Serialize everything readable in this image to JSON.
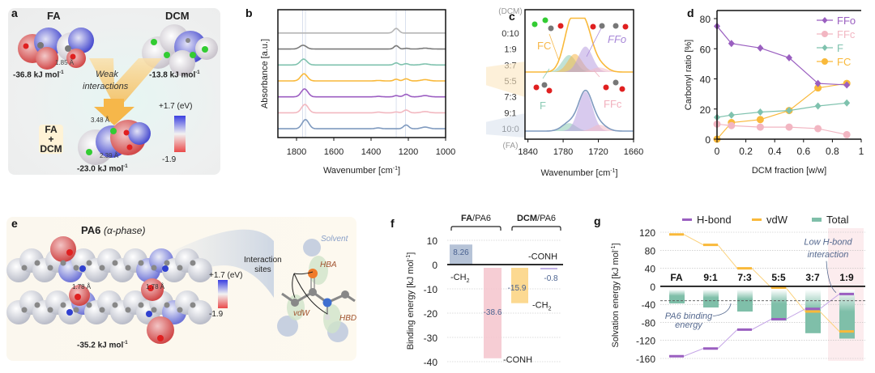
{
  "panels": {
    "a": {
      "label": "a",
      "fa_title": "FA",
      "dcm_title": "DCM",
      "fa_energy": "-36.8 kJ mol",
      "dcm_energy": "-13.8 kJ mol",
      "complex_energy": "-23.0 kJ mol",
      "energy_sup": "-1",
      "fa_hbond": "1.85 Å",
      "arrow_text_1": "Weak",
      "arrow_text_2": "interactions",
      "complex_label_1": "FA",
      "complex_label_2": "+",
      "complex_label_3": "DCM",
      "dist_1": "3.48 Å",
      "dist_2": "2.39 Å",
      "scale_max": "+1.7 (eV)",
      "scale_min": "-1.9"
    },
    "b": {
      "label": "b"
    },
    "c": {
      "label": "c"
    },
    "d": {
      "label": "d"
    },
    "e": {
      "label": "e",
      "title": "PA6",
      "subtitle": "(α-phase)",
      "dist_1": "1.78 Å",
      "dist_2": "1.78 Å",
      "energy": "-35.2 kJ mol",
      "energy_sup": "-1",
      "scale_max": "+1.7 (eV)",
      "scale_min": "-1.9",
      "solvent_label": "Solvent",
      "sites_label_1": "Interaction",
      "sites_label_2": "sites",
      "hba": "HBA",
      "hbd": "HBD",
      "vdw": "vdW"
    },
    "f": {
      "label": "f"
    },
    "g": {
      "label": "g"
    }
  },
  "chart_data": [
    {
      "id": "b",
      "type": "line",
      "title": "",
      "xlabel": "Wavenumber [cm-1]",
      "ylabel": "Absorbance [a.u.]",
      "xlim": [
        1900,
        1000
      ],
      "xticks": [
        1800,
        1600,
        1400,
        1200,
        1000
      ],
      "ratio_header": "(DCM)",
      "ratio_footer": "(FA)",
      "reference_lines": [
        1768,
        1752,
        1265,
        1215
      ],
      "series": [
        {
          "name": "0:10",
          "color": "#b5b5b5",
          "peaks": [
            [
              1265,
              0.55,
              14
            ]
          ]
        },
        {
          "name": "1:9",
          "color": "#7a7a7a",
          "peaks": [
            [
              1765,
              0.45,
              18
            ],
            [
              1265,
              0.4,
              12
            ],
            [
              1210,
              0.08,
              12
            ],
            [
              1110,
              0.1,
              20
            ]
          ]
        },
        {
          "name": "3:7",
          "color": "#7fc2ae",
          "peaks": [
            [
              1762,
              0.7,
              18
            ],
            [
              1265,
              0.25,
              12
            ],
            [
              1212,
              0.15,
              12
            ],
            [
              1110,
              0.12,
              20
            ]
          ]
        },
        {
          "name": "5:5",
          "color": "#f9b93a",
          "peaks": [
            [
              1760,
              0.85,
              18
            ],
            [
              1360,
              0.05,
              15
            ],
            [
              1265,
              0.2,
              12
            ],
            [
              1212,
              0.25,
              14
            ],
            [
              1110,
              0.15,
              20
            ]
          ]
        },
        {
          "name": "7:3",
          "color": "#9c5ec2",
          "peaks": [
            [
              1757,
              0.95,
              18
            ],
            [
              1360,
              0.06,
              15
            ],
            [
              1265,
              0.15,
              12
            ],
            [
              1212,
              0.3,
              14
            ],
            [
              1110,
              0.15,
              20
            ]
          ]
        },
        {
          "name": "9:1",
          "color": "#f2b8c0",
          "peaks": [
            [
              1755,
              1.0,
              18
            ],
            [
              1360,
              0.08,
              15
            ],
            [
              1265,
              0.1,
              12
            ],
            [
              1212,
              0.33,
              14
            ],
            [
              1110,
              0.15,
              20
            ]
          ]
        },
        {
          "name": "10:0",
          "color": "#7f9abf",
          "peaks": [
            [
              1752,
              1.1,
              18
            ],
            [
              1362,
              0.1,
              15
            ],
            [
              1212,
              0.45,
              14
            ],
            [
              1110,
              0.2,
              20
            ]
          ]
        }
      ]
    },
    {
      "id": "c",
      "type": "area",
      "xlabel": "Wavenumber [cm-1]",
      "xlim": [
        1845,
        1660
      ],
      "xticks": [
        1840,
        1780,
        1720,
        1660
      ],
      "component_labels": {
        "FC": "FC",
        "FFo": "FFo",
        "F": "F",
        "FFc": "FFc"
      },
      "component_colors": {
        "FC": "#f7b84a",
        "FFo": "#b89ee0",
        "F": "#8ccbb5",
        "FFc": "#f3bcc6"
      },
      "spectra": [
        {
          "ratio": "5:5",
          "color": "#f9b93a",
          "components": {
            "F": [
              1770,
              0.3
            ],
            "FC": [
              1760,
              0.32
            ],
            "FFo": [
              1742,
              0.45
            ],
            "FFc": [
              1718,
              0.08
            ]
          }
        },
        {
          "ratio": "10:0",
          "color": "#7f9abf",
          "components": {
            "F": [
              1770,
              0.15
            ],
            "FFo": [
              1742,
              0.75
            ],
            "FFc": [
              1718,
              0.12
            ]
          }
        }
      ]
    },
    {
      "id": "d",
      "type": "line",
      "xlabel": "DCM fraction [w/w]",
      "ylabel": "Carbonyl ratio [%]",
      "xlim": [
        0,
        1
      ],
      "ylim": [
        0,
        80
      ],
      "xticks": [
        0,
        0.2,
        0.4,
        0.6,
        0.8,
        1
      ],
      "yticks": [
        0,
        20,
        40,
        60,
        80
      ],
      "legend_position": "top-right",
      "x": [
        0,
        0.1,
        0.3,
        0.5,
        0.7,
        0.9
      ],
      "series": [
        {
          "name": "FFo",
          "color": "#9a5fc0",
          "marker": "diamond",
          "values": [
            75,
            63.5,
            60.5,
            54,
            37,
            36
          ]
        },
        {
          "name": "FFc",
          "color": "#f2b6c2",
          "marker": "circle",
          "values": [
            10,
            9,
            8,
            8,
            7,
            3
          ]
        },
        {
          "name": "F",
          "color": "#7fc2ae",
          "marker": "diamond",
          "values": [
            14.5,
            16,
            18,
            19,
            22,
            24
          ]
        },
        {
          "name": "FC",
          "color": "#f9b93a",
          "marker": "circle",
          "values": [
            0,
            11,
            13,
            19,
            34,
            37
          ]
        }
      ]
    },
    {
      "id": "f",
      "type": "bar",
      "ylabel": "Binding energy [kJ mol-1]",
      "ylim": [
        -40,
        10
      ],
      "yticks": [
        10,
        0,
        -10,
        -20,
        -30,
        -40
      ],
      "group_labels": [
        {
          "bold": "FA",
          "rest": "/PA6"
        },
        {
          "bold": "DCM",
          "rest": "/PA6"
        }
      ],
      "bars": [
        {
          "group": "FA/PA6",
          "site": "-CH2",
          "value": 8.26,
          "label": "8.26",
          "color": "#a9b8d0"
        },
        {
          "group": "FA/PA6",
          "site": "-CONH",
          "value": -38.6,
          "label": "-38.6",
          "color": "#f4c4cd"
        },
        {
          "group": "DCM/PA6",
          "site": "-CH2",
          "value": -15.9,
          "label": "-15.9",
          "color": "#fbd27e"
        },
        {
          "group": "DCM/PA6",
          "site": "-CONH",
          "value": -0.8,
          "label": "-0.8",
          "color": "#b7a3e0"
        }
      ],
      "site_labels": {
        "fa_ch2": "-CH",
        "fa_conh": "-CONH",
        "dcm_ch2": "-CH",
        "dcm_conh": "-CONH",
        "sub2": "2"
      }
    },
    {
      "id": "g",
      "type": "bar",
      "ylabel": "Solvation energy [kJ mol-1]",
      "ylim": [
        -160,
        120
      ],
      "yticks": [
        120,
        80,
        40,
        0,
        -40,
        -80,
        -120,
        -160
      ],
      "categories": [
        "FA",
        "9:1",
        "7:3",
        "5:5",
        "3:7",
        "1:9"
      ],
      "legend_position": "top",
      "series": [
        {
          "name": "H-bond",
          "color": "#9a5fc0",
          "values": [
            -155,
            -138,
            -96,
            -73,
            -50,
            -17
          ]
        },
        {
          "name": "vdW",
          "color": "#f9b93a",
          "values": [
            115,
            92,
            40,
            -3,
            -56,
            -100
          ]
        },
        {
          "name": "Total",
          "color": "#7fbfa9",
          "values": [
            -38,
            -47,
            -56,
            -76,
            -104,
            -116
          ]
        }
      ],
      "reference_line": {
        "value": -32,
        "label_1": "PA6 binding",
        "label_2": "energy"
      },
      "annotation": {
        "line_1": "Low H-bond",
        "line_2": "interaction"
      },
      "highlight_category": "1:9"
    }
  ]
}
